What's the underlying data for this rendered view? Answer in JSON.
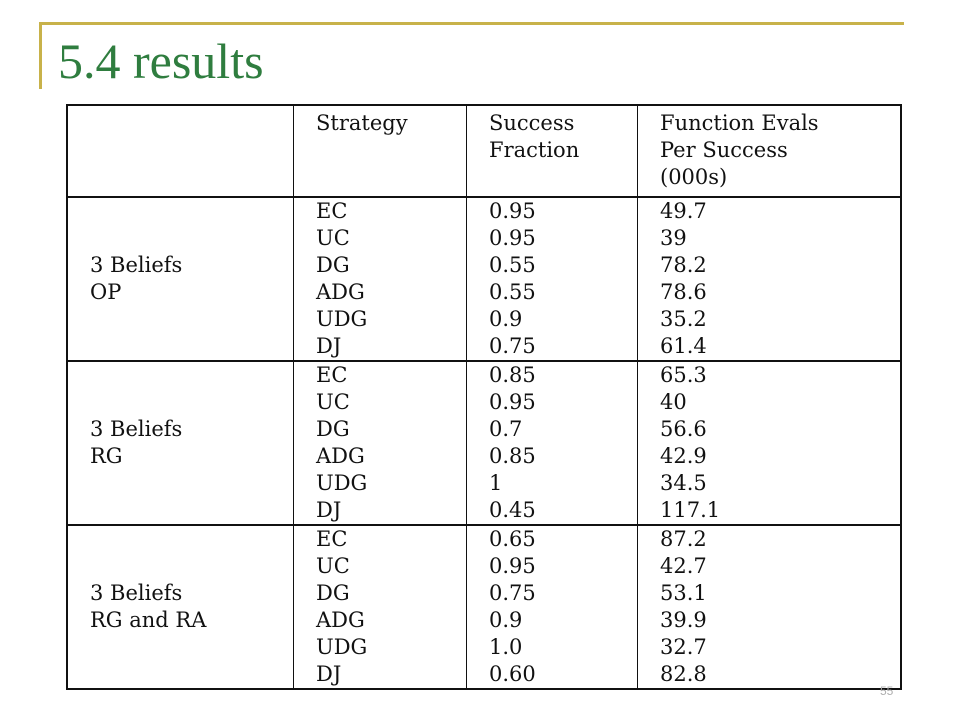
{
  "slide": {
    "title": "5.4 results",
    "page_number": "55"
  },
  "table": {
    "headers": {
      "group": "",
      "strategy": "Strategy",
      "success_fraction": [
        "Success",
        "Fraction"
      ],
      "evals": [
        "Function Evals",
        "Per Success",
        "(000s)"
      ]
    },
    "groups": [
      {
        "label": [
          "3 Beliefs",
          "OP"
        ],
        "rows": [
          {
            "strategy": "EC",
            "fraction": "0.95",
            "evals": "49.7"
          },
          {
            "strategy": "UC",
            "fraction": "0.95",
            "evals": "39"
          },
          {
            "strategy": "DG",
            "fraction": "0.55",
            "evals": "78.2"
          },
          {
            "strategy": "ADG",
            "fraction": "0.55",
            "evals": "78.6"
          },
          {
            "strategy": "UDG",
            "fraction": "0.9",
            "evals": "35.2"
          },
          {
            "strategy": "DJ",
            "fraction": "0.75",
            "evals": "61.4"
          }
        ]
      },
      {
        "label": [
          "3 Beliefs",
          "RG"
        ],
        "rows": [
          {
            "strategy": "EC",
            "fraction": "0.85",
            "evals": "65.3"
          },
          {
            "strategy": "UC",
            "fraction": "0.95",
            "evals": "40"
          },
          {
            "strategy": "DG",
            "fraction": "0.7",
            "evals": "56.6"
          },
          {
            "strategy": "ADG",
            "fraction": "0.85",
            "evals": "42.9"
          },
          {
            "strategy": "UDG",
            "fraction": "1",
            "evals": "34.5"
          },
          {
            "strategy": "DJ",
            "fraction": "0.45",
            "evals": "117.1"
          }
        ]
      },
      {
        "label": [
          "3 Beliefs",
          "RG and RA"
        ],
        "rows": [
          {
            "strategy": "EC",
            "fraction": "0.65",
            "evals": "87.2"
          },
          {
            "strategy": "UC",
            "fraction": "0.95",
            "evals": "42.7"
          },
          {
            "strategy": "DG",
            "fraction": "0.75",
            "evals": "53.1"
          },
          {
            "strategy": "ADG",
            "fraction": "0.9",
            "evals": "39.9"
          },
          {
            "strategy": "UDG",
            "fraction": "1.0",
            "evals": "32.7"
          },
          {
            "strategy": "DJ",
            "fraction": "0.60",
            "evals": "82.8"
          }
        ]
      }
    ]
  },
  "colors": {
    "title": "#2f7d3f",
    "accent_rule": "#c8b24a"
  }
}
